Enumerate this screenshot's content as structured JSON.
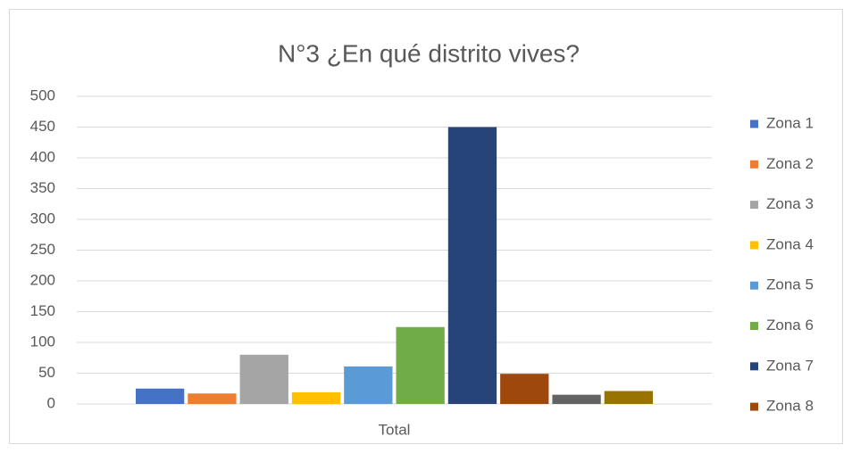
{
  "chart_data": {
    "type": "bar",
    "title": "N°3 ¿En qué distrito vives?",
    "categories": [
      "Total"
    ],
    "series": [
      {
        "name": "Zona 1",
        "color": "#4472c4",
        "values": [
          25
        ]
      },
      {
        "name": "Zona 2",
        "color": "#ed7d31",
        "values": [
          17
        ]
      },
      {
        "name": "Zona 3",
        "color": "#a5a5a5",
        "values": [
          80
        ]
      },
      {
        "name": "Zona 4",
        "color": "#ffc000",
        "values": [
          19
        ]
      },
      {
        "name": "Zona 5",
        "color": "#5b9bd5",
        "values": [
          61
        ]
      },
      {
        "name": "Zona 6",
        "color": "#70ad47",
        "values": [
          125
        ]
      },
      {
        "name": "Zona 7",
        "color": "#264478",
        "values": [
          450
        ]
      },
      {
        "name": "Zona 8",
        "color": "#9e480e",
        "values": [
          49
        ]
      },
      {
        "name": null,
        "color": "#636363",
        "values": [
          15
        ]
      },
      {
        "name": null,
        "color": "#997300",
        "values": [
          21
        ]
      }
    ],
    "ylim": [
      0,
      500
    ],
    "yticks": [
      0,
      50,
      100,
      150,
      200,
      250,
      300,
      350,
      400,
      450,
      500
    ],
    "grid": true,
    "legend": "right"
  }
}
